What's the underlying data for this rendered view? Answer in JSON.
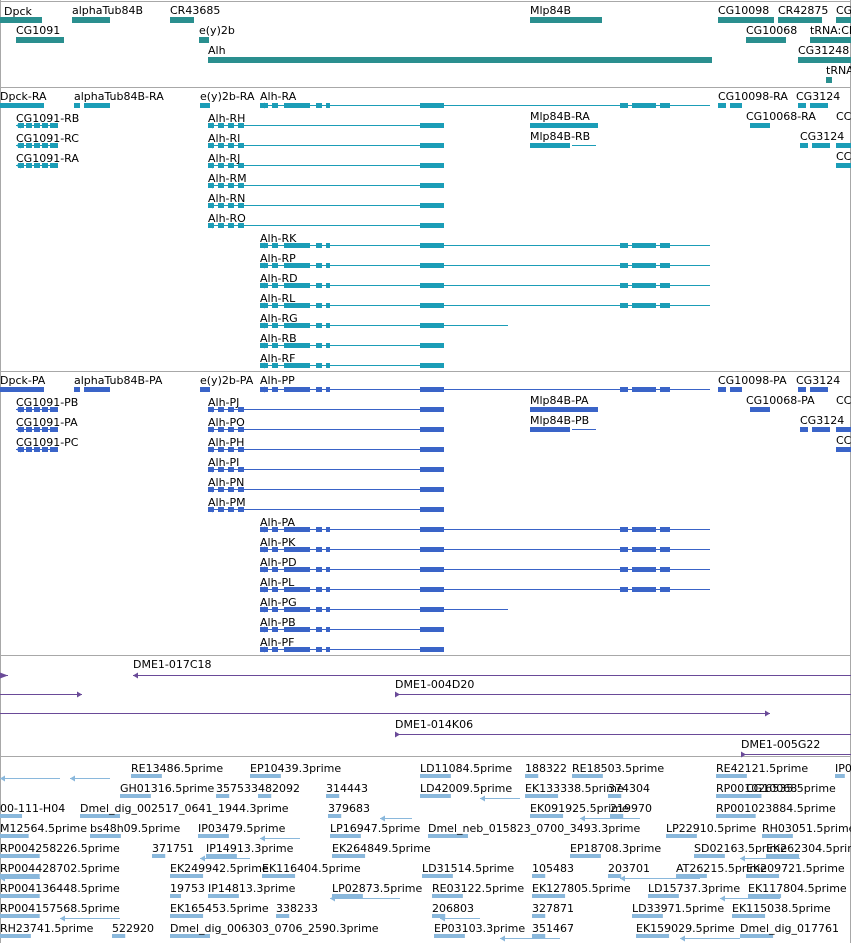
{
  "colors": {
    "gene": "#2a8f8f",
    "rna": "#1b9db7",
    "protein": "#3a64c8",
    "clone": "#6a4a98",
    "est": "#8ab8dc",
    "divider": "#a8a8a8"
  },
  "tracks": [
    {
      "name": "gene-track",
      "color_key": "gene",
      "features": [
        {
          "label": "Dpck"
        },
        {
          "label": "CG1091"
        },
        {
          "label": "alphaTub84B"
        },
        {
          "label": "CR43685"
        },
        {
          "label": "e(y)2b"
        },
        {
          "label": "Alh"
        },
        {
          "label": "Mlp84B"
        },
        {
          "label": "CG10098"
        },
        {
          "label": "CR42875"
        },
        {
          "label": "CG"
        },
        {
          "label": "CG10068"
        },
        {
          "label": "tRNA:CI"
        },
        {
          "label": "CG31248"
        },
        {
          "label": "tRNA"
        }
      ]
    },
    {
      "name": "transcript-track",
      "color_key": "rna",
      "features": [
        {
          "label": "Dpck-RA"
        },
        {
          "label": "CG1091-RB"
        },
        {
          "label": "CG1091-RC"
        },
        {
          "label": "CG1091-RA"
        },
        {
          "label": "alphaTub84B-RA"
        },
        {
          "label": "e(y)2b-RA"
        },
        {
          "label": "Alh-RA"
        },
        {
          "label": "Alh-RH"
        },
        {
          "label": "Alh-RI"
        },
        {
          "label": "Alh-RJ"
        },
        {
          "label": "Alh-RM"
        },
        {
          "label": "Alh-RN"
        },
        {
          "label": "Alh-RO"
        },
        {
          "label": "Alh-RK"
        },
        {
          "label": "Alh-RP"
        },
        {
          "label": "Alh-RD"
        },
        {
          "label": "Alh-RL"
        },
        {
          "label": "Alh-RG"
        },
        {
          "label": "Alh-RB"
        },
        {
          "label": "Alh-RF"
        },
        {
          "label": "Mlp84B-RA"
        },
        {
          "label": "Mlp84B-RB"
        },
        {
          "label": "CG10098-RA"
        },
        {
          "label": "CG3124"
        },
        {
          "label": "CG10068-RA"
        },
        {
          "label": "CG3124"
        },
        {
          "label": "CC"
        },
        {
          "label": "CC"
        }
      ]
    },
    {
      "name": "protein-track",
      "color_key": "protein",
      "features": [
        {
          "label": "Dpck-PA"
        },
        {
          "label": "CG1091-PB"
        },
        {
          "label": "CG1091-PA"
        },
        {
          "label": "CG1091-PC"
        },
        {
          "label": "alphaTub84B-PA"
        },
        {
          "label": "e(y)2b-PA"
        },
        {
          "label": "Alh-PP"
        },
        {
          "label": "Alh-PJ"
        },
        {
          "label": "Alh-PO"
        },
        {
          "label": "Alh-PH"
        },
        {
          "label": "Alh-PI"
        },
        {
          "label": "Alh-PN"
        },
        {
          "label": "Alh-PM"
        },
        {
          "label": "Alh-PA"
        },
        {
          "label": "Alh-PK"
        },
        {
          "label": "Alh-PD"
        },
        {
          "label": "Alh-PL"
        },
        {
          "label": "Alh-PG"
        },
        {
          "label": "Alh-PB"
        },
        {
          "label": "Alh-PF"
        },
        {
          "label": "Mlp84B-PA"
        },
        {
          "label": "Mlp84B-PB"
        },
        {
          "label": "CG10098-PA"
        },
        {
          "label": "CG3124"
        },
        {
          "label": "CG10068-PA"
        },
        {
          "label": "CG3124"
        },
        {
          "label": "CC"
        },
        {
          "label": "CC"
        }
      ]
    },
    {
      "name": "clone-track",
      "color_key": "clone",
      "features": [
        {
          "label": "DME1-017C18"
        },
        {
          "label": "DME1-004D20"
        },
        {
          "label": "DME1-014K06"
        },
        {
          "label": "DME1-005G22"
        }
      ]
    },
    {
      "name": "est-track",
      "color_key": "est",
      "features": [
        {
          "label": "RE13486.5prime"
        },
        {
          "label": "EP10439.3prime"
        },
        {
          "label": "LD11084.5prime"
        },
        {
          "label": "188322"
        },
        {
          "label": "RE18503.5prime"
        },
        {
          "label": "RE42121.5prime"
        },
        {
          "label": "IP0"
        },
        {
          "label": "GH01316.5prime"
        },
        {
          "label": "357533"
        },
        {
          "label": "482092"
        },
        {
          "label": "314443"
        },
        {
          "label": "LD42009.5prime"
        },
        {
          "label": "EK133338.5prime"
        },
        {
          "label": "374304"
        },
        {
          "label": "CG10068"
        },
        {
          "label": "RP001026535.5prime"
        },
        {
          "label": "00-111-H04"
        },
        {
          "label": "Dmel_dig_002517_0641_1944.3prime"
        },
        {
          "label": "379683"
        },
        {
          "label": "EK091925.5prime"
        },
        {
          "label": "219970"
        },
        {
          "label": "RP001023884.5prime"
        },
        {
          "label": "M12564.5prime"
        },
        {
          "label": "bs48h09.5prime"
        },
        {
          "label": "IP03479.5prime"
        },
        {
          "label": "LP16947.5prime"
        },
        {
          "label": "Dmel_neb_015823_0700_3493.3prime"
        },
        {
          "label": "LP22910.5prime"
        },
        {
          "label": "RH03051.5prime"
        },
        {
          "label": "RP004258226.5prime"
        },
        {
          "label": "371751"
        },
        {
          "label": "IP14913.3prime"
        },
        {
          "label": "EK264849.5prime"
        },
        {
          "label": "EP18708.3prime"
        },
        {
          "label": "SD02163.5prime"
        },
        {
          "label": "EK262304.5prime"
        },
        {
          "label": "RP004428702.5prime"
        },
        {
          "label": "EK249942.5prime"
        },
        {
          "label": "EK116404.5prime"
        },
        {
          "label": "LD31514.5prime"
        },
        {
          "label": "105483"
        },
        {
          "label": "203701"
        },
        {
          "label": "AT26215.5prime"
        },
        {
          "label": "EK209721.5prime"
        },
        {
          "label": "RP004136448.5prime"
        },
        {
          "label": "19753"
        },
        {
          "label": "IP14813.3prime"
        },
        {
          "label": "LP02873.5prime"
        },
        {
          "label": "RE03122.5prime"
        },
        {
          "label": "EK127805.5prime"
        },
        {
          "label": "LD15737.3prime"
        },
        {
          "label": "EK117804.5prime"
        },
        {
          "label": "RP004157568.5prime"
        },
        {
          "label": "EK165453.5prime"
        },
        {
          "label": "338233"
        },
        {
          "label": "206803"
        },
        {
          "label": "327871"
        },
        {
          "label": "LD33971.5prime"
        },
        {
          "label": "EK115038.5prime"
        },
        {
          "label": "RH23741.5prime"
        },
        {
          "label": "522920"
        },
        {
          "label": "Dmel_dig_006303_0706_2590.3prime"
        },
        {
          "label": "EP03103.3prime"
        },
        {
          "label": "351467"
        },
        {
          "label": "EK159029.5prime"
        },
        {
          "label": "Dmel_dig_017761"
        }
      ]
    }
  ]
}
